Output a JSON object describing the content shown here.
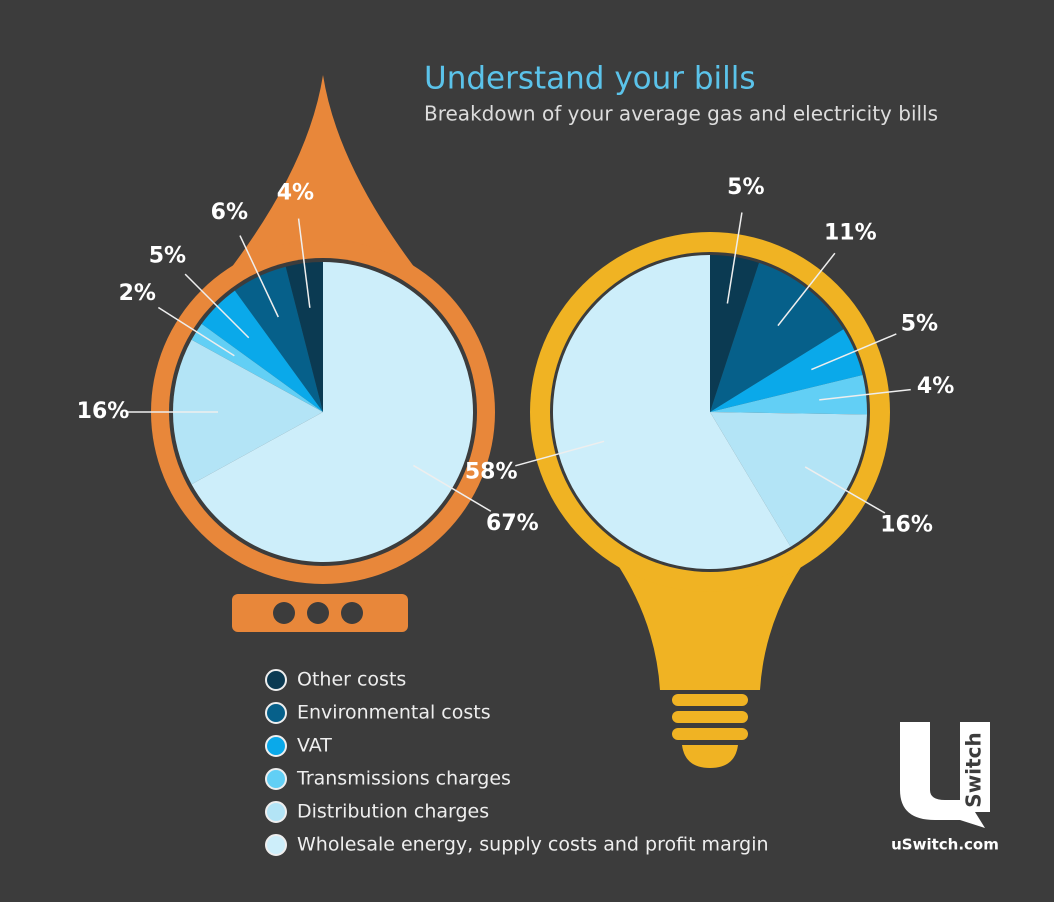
{
  "title": "Understand your bills",
  "subtitle": "Breakdown of your average gas and electricity bills",
  "legend": {
    "items": [
      "Other costs",
      "Environmental costs",
      "VAT",
      "Transmissions charges",
      "Distribution charges",
      "Wholesale energy, supply costs and profit margin"
    ],
    "colors": [
      "#0b3a52",
      "#06608a",
      "#0aa9ea",
      "#62cff5",
      "#b3e4f6",
      "#cdeefa"
    ]
  },
  "chart_data": [
    {
      "type": "pie",
      "direction": "counterclockwise",
      "values": [
        4,
        6,
        5,
        2,
        16,
        67
      ],
      "value_labels": [
        "4%",
        "6%",
        "5%",
        "2%",
        "16%",
        "67%"
      ]
    },
    {
      "type": "pie",
      "direction": "clockwise",
      "values": [
        5,
        11,
        5,
        4,
        16,
        58
      ],
      "value_labels": [
        "5%",
        "11%",
        "5%",
        "4%",
        "16%",
        "58%"
      ]
    }
  ],
  "logo": {
    "mark": "Switch",
    "site": "uSwitch.com"
  }
}
